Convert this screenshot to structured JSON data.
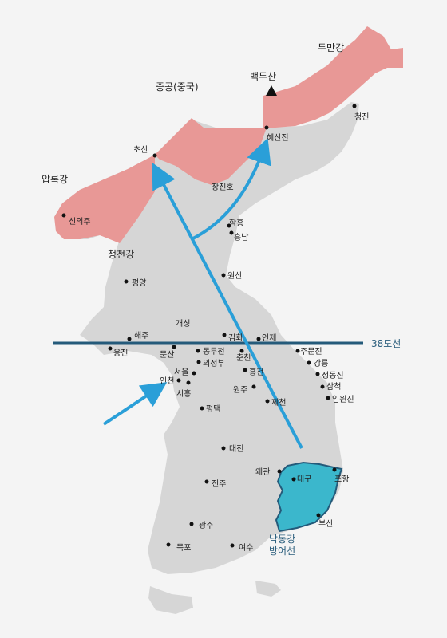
{
  "regions": {
    "china_front": "중공(중국)",
    "yalu": "압록강",
    "tumen": "두만강",
    "paektu": "백두산",
    "chongchon": "청천강",
    "jangjin": "장진호"
  },
  "line38": {
    "label": "38도선"
  },
  "nakdong": {
    "line1": "낙동강",
    "line2": "방어선"
  },
  "cities": [
    "신의주",
    "초산",
    "혜산진",
    "청진",
    "함흥",
    "흥남",
    "평양",
    "원산",
    "개성",
    "해주",
    "옹진",
    "김화",
    "인제",
    "문산",
    "동두천",
    "의정부",
    "춘천",
    "주문진",
    "강릉",
    "정동진",
    "삼척",
    "임원진",
    "서울",
    "인천",
    "시흥",
    "홍천",
    "원주",
    "제천",
    "평택",
    "대전",
    "왜관",
    "대구",
    "포항",
    "전주",
    "부산",
    "광주",
    "목포",
    "여수"
  ],
  "colors": {
    "land": "#d6d6d6",
    "chinese_front": "#e89896",
    "nakdong_zone": "#3bb7cc",
    "arrow": "#2a9fd8",
    "parallel": "#245a7a",
    "background": "#f4f4f4"
  }
}
